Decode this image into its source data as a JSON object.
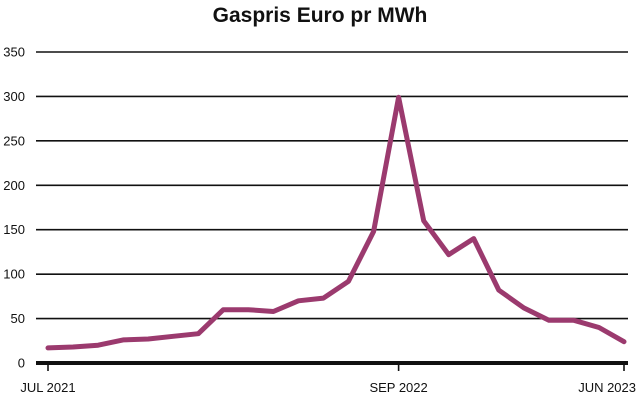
{
  "chart_data": {
    "type": "line",
    "title": "Gaspris Euro pr MWh",
    "xlabel": "",
    "ylabel": "",
    "ylim": [
      0,
      350
    ],
    "yticks": [
      0,
      50,
      100,
      150,
      200,
      250,
      300,
      350
    ],
    "grid": true,
    "line_color": "#9B3A6E",
    "x_tick_labels": [
      {
        "index": 0,
        "label": "JUL 2021"
      },
      {
        "index": 14,
        "label": "SEP 2022"
      },
      {
        "index": 23,
        "label": "JUN 2023"
      }
    ],
    "series": [
      {
        "values": [
          17,
          18,
          20,
          26,
          27,
          30,
          33,
          60,
          60,
          58,
          70,
          73,
          92,
          148,
          299,
          160,
          122,
          140,
          82,
          62,
          48,
          48,
          40,
          24
        ]
      }
    ]
  }
}
